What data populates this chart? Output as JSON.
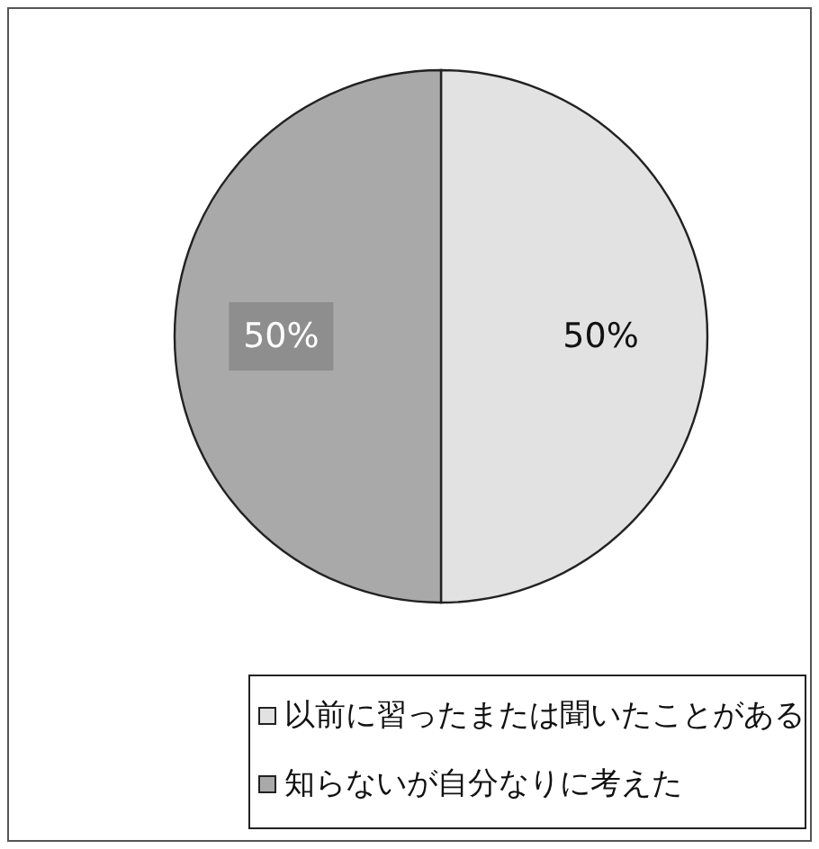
{
  "chart_data": {
    "type": "pie",
    "categories": [
      "以前に習ったまたは聞いたことがある",
      "知らないが自分なりに考えた"
    ],
    "values": [
      50,
      50
    ],
    "colors": [
      "#e2e2e2",
      "#a9a9a9"
    ],
    "value_labels": [
      "50%",
      "50%"
    ],
    "legend": "bottom"
  }
}
